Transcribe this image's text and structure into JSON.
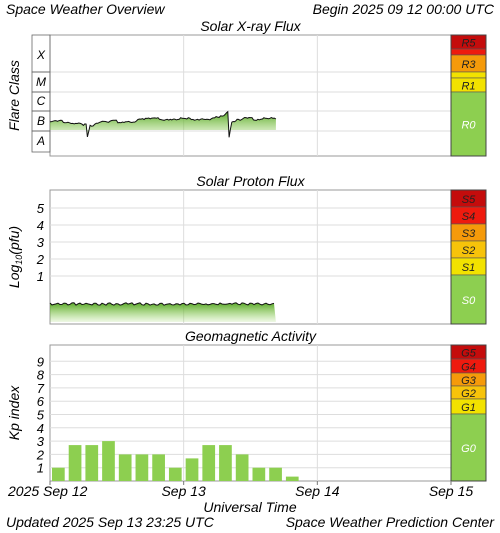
{
  "header": {
    "title": "Space Weather Overview",
    "begin": "Begin 2025 09 12 00:00 UTC"
  },
  "footer": {
    "updated": "Updated 2025 Sep 13 23:25 UTC",
    "center": "Space Weather Prediction Center",
    "xlabel": "Universal Time",
    "xticks": [
      "2025 Sep 12",
      "Sep 13",
      "Sep 14",
      "Sep 15"
    ]
  },
  "colors": {
    "green": "#8dcf50",
    "yellow": "#f2e200",
    "orange": "#f59a0a",
    "red": "#ee1a0e",
    "darkred": "#c40c0c",
    "grid": "#dddddd"
  },
  "chart_data": [
    {
      "type": "area",
      "title": "Solar X-ray Flux",
      "ylabel": "Flare Class",
      "yticks": [
        "A",
        "B",
        "C",
        "M",
        "X"
      ],
      "x_unit": "days since 2025-09-12 00:00 UTC",
      "xlim": [
        0,
        3
      ],
      "grid": true,
      "series": [
        {
          "x": [
            0,
            0.1,
            0.25,
            0.27,
            0.28,
            0.3,
            0.45,
            0.6,
            0.75,
            0.9,
            1.0,
            1.15,
            1.3,
            1.33,
            1.34,
            1.36,
            1.4,
            1.5,
            1.6,
            1.69
          ],
          "y": [
            "B3",
            "B3",
            "B2",
            "B2",
            "A5",
            "B2",
            "B3",
            "B3",
            "B4",
            "B4",
            "B4",
            "B4",
            "B5",
            "B8",
            "A5",
            "B3",
            "B4",
            "B4",
            "B4",
            "B4"
          ]
        }
      ],
      "scale": [
        {
          "label": "R5",
          "color": "#c40c0c"
        },
        {
          "label": "R3",
          "color": "#f59a0a"
        },
        {
          "label": "",
          "color": "#f2e200"
        },
        {
          "label": "R1",
          "color": "#f2e200"
        },
        {
          "label": "R0",
          "color": "#8dcf50"
        }
      ]
    },
    {
      "type": "area",
      "title": "Solar Proton Flux",
      "ylabel": "Log10(pfu)",
      "yticks": [
        "1",
        "2",
        "3",
        "4",
        "5"
      ],
      "x_unit": "days since 2025-09-12 00:00 UTC",
      "xlim": [
        0,
        3
      ],
      "grid": true,
      "series": [
        {
          "x": [
            0,
            1.69
          ],
          "y": [
            -0.8,
            -0.8
          ]
        }
      ],
      "scale": [
        {
          "label": "S5",
          "color": "#c40c0c"
        },
        {
          "label": "S4",
          "color": "#ee1a0e"
        },
        {
          "label": "S3",
          "color": "#f59a0a"
        },
        {
          "label": "S2",
          "color": "#f7c30a"
        },
        {
          "label": "S1",
          "color": "#f2e200"
        },
        {
          "label": "S0",
          "color": "#8dcf50"
        }
      ]
    },
    {
      "type": "bar",
      "title": "Geomagnetic Activity",
      "ylabel": "Kp index",
      "yticks": [
        "1",
        "2",
        "3",
        "4",
        "5",
        "6",
        "7",
        "8",
        "9"
      ],
      "ylim": [
        0,
        9
      ],
      "bar_width_days": 0.125,
      "x": [
        0,
        0.125,
        0.25,
        0.375,
        0.5,
        0.625,
        0.75,
        0.875,
        1.0,
        1.125,
        1.25,
        1.375,
        1.5,
        1.625,
        1.75,
        1.875
      ],
      "values": [
        1.0,
        2.7,
        2.7,
        3.0,
        2.0,
        2.0,
        2.0,
        1.0,
        1.7,
        2.7,
        2.7,
        2.0,
        1.0,
        1.0,
        0.33,
        0.0
      ],
      "scale": [
        {
          "label": "G5",
          "color": "#c40c0c"
        },
        {
          "label": "G4",
          "color": "#ee1a0e"
        },
        {
          "label": "G3",
          "color": "#f59a0a"
        },
        {
          "label": "G2",
          "color": "#f7c30a"
        },
        {
          "label": "G1",
          "color": "#f2e200"
        },
        {
          "label": "G0",
          "color": "#8dcf50"
        }
      ]
    }
  ]
}
